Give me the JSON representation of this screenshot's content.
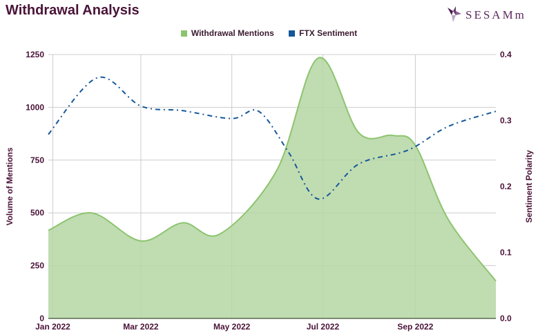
{
  "title": "Withdrawal Analysis",
  "logo": {
    "text": "SESAMm",
    "icon": "sesamm-logo-icon",
    "color": "#5b2a5e"
  },
  "colors": {
    "mentions_fill": "#b5d6a3",
    "mentions_line": "#8cc46e",
    "sentiment": "#14579a",
    "text": "#4a1338",
    "grid": "#cccccc"
  },
  "chart_data": {
    "type": "area+line",
    "title": "Withdrawal Analysis",
    "legend": {
      "placement": "top",
      "entries": [
        "Withdrawal Mentions",
        "FTX Sentiment"
      ]
    },
    "grid": true,
    "x": {
      "type": "date",
      "range": [
        "2021-12-29",
        "2022-10-25"
      ],
      "ticks": [
        "2022-01-01",
        "2022-03-01",
        "2022-05-01",
        "2022-07-01",
        "2022-09-01"
      ],
      "tick_labels": [
        "Jan 2022",
        "Mar 2022",
        "May 2022",
        "Jul 2022",
        "Sep 2022"
      ]
    },
    "y_left": {
      "label": "Volume of Mentions",
      "range": [
        0,
        1250
      ],
      "ticks": [
        0,
        250,
        500,
        750,
        1000,
        1250
      ],
      "tick_labels": [
        "0",
        "250",
        "500",
        "750",
        "1000",
        "1250"
      ]
    },
    "y_right": {
      "label": "Sentiment Polarity",
      "range": [
        0,
        0.4
      ],
      "ticks": [
        0,
        0.1,
        0.2,
        0.3,
        0.4
      ],
      "tick_labels": [
        "0.0",
        "0.1",
        "0.2",
        "0.3",
        "0.4"
      ]
    },
    "series": [
      {
        "name": "Withdrawal Mentions",
        "type": "area",
        "axis": "left",
        "points": [
          [
            "2021-12-29",
            417
          ],
          [
            "2022-01-27",
            500
          ],
          [
            "2022-03-01",
            367
          ],
          [
            "2022-03-29",
            453
          ],
          [
            "2022-04-23",
            400
          ],
          [
            "2022-05-31",
            700
          ],
          [
            "2022-06-28",
            1234
          ],
          [
            "2022-07-25",
            880
          ],
          [
            "2022-08-17",
            867
          ],
          [
            "2022-09-01",
            820
          ],
          [
            "2022-09-23",
            470
          ],
          [
            "2022-10-25",
            177
          ]
        ]
      },
      {
        "name": "FTX Sentiment",
        "type": "line",
        "style": "dash-dot",
        "axis": "right",
        "points": [
          [
            "2021-12-29",
            0.279
          ],
          [
            "2022-01-31",
            0.365
          ],
          [
            "2022-03-01",
            0.322
          ],
          [
            "2022-03-29",
            0.315
          ],
          [
            "2022-05-01",
            0.303
          ],
          [
            "2022-05-19",
            0.314
          ],
          [
            "2022-06-08",
            0.252
          ],
          [
            "2022-06-28",
            0.181
          ],
          [
            "2022-07-25",
            0.234
          ],
          [
            "2022-08-27",
            0.255
          ],
          [
            "2022-09-23",
            0.291
          ],
          [
            "2022-10-25",
            0.314
          ]
        ]
      }
    ]
  }
}
